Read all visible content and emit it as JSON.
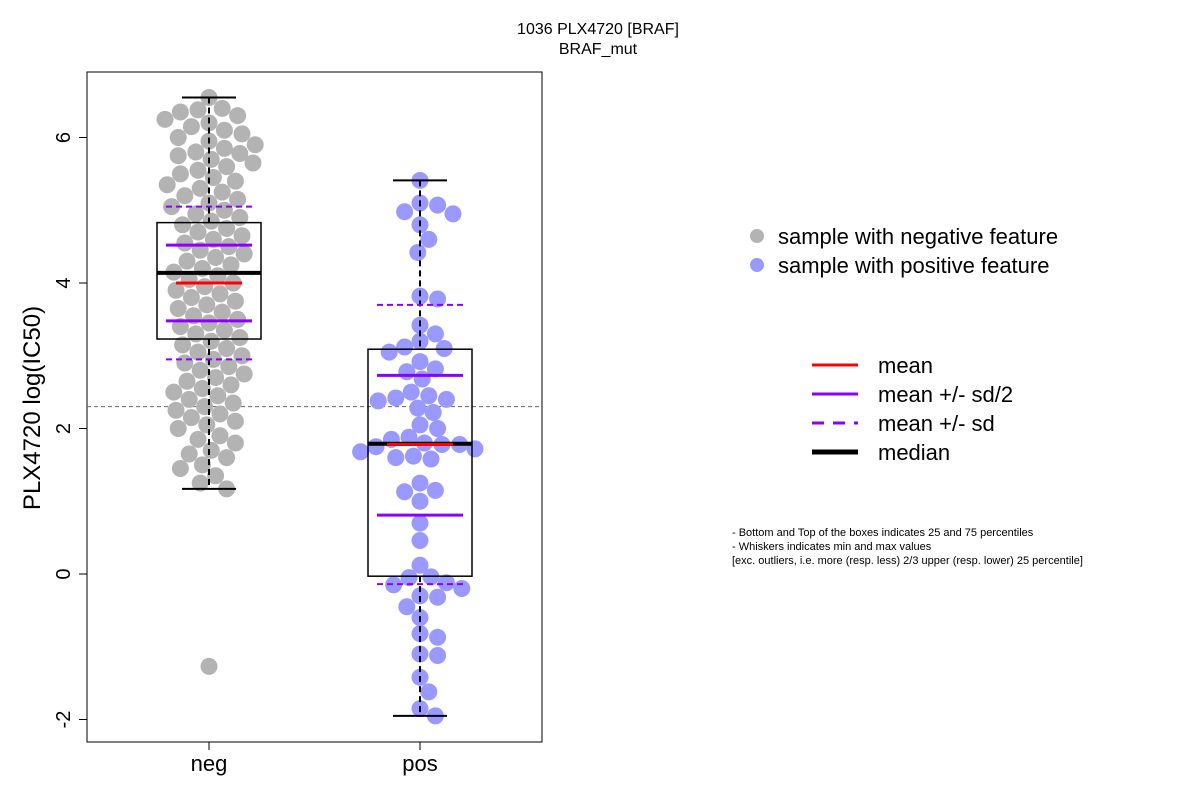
{
  "chart_data": {
    "type": "scatter",
    "title": "1036 PLX4720 [BRAF]",
    "subtitle": "BRAF_mut",
    "xlabel": "",
    "ylabel": "PLX4720 log(IC50)",
    "categories": [
      "neg",
      "pos"
    ],
    "yticks": [
      "-2",
      "0",
      "2",
      "4",
      "6"
    ],
    "ylim": [
      -2.3,
      6.9
    ],
    "threshold": 2.3,
    "box_stats": [
      {
        "group": "neg",
        "min": 1.17,
        "q1": 3.23,
        "median": 4.14,
        "q3": 4.83,
        "max": 6.55,
        "mean": 4.0,
        "mean_minus_half_sd": 3.48,
        "mean_plus_half_sd": 4.52,
        "mean_minus_sd": 2.95,
        "mean_plus_sd": 5.05
      },
      {
        "group": "pos",
        "min": -1.95,
        "q1": -0.03,
        "median": 1.79,
        "q3": 3.09,
        "max": 5.41,
        "mean": 1.78,
        "mean_minus_half_sd": 0.81,
        "mean_plus_half_sd": 2.73,
        "mean_minus_sd": -0.14,
        "mean_plus_sd": 3.7
      }
    ],
    "outliers": [
      {
        "group": "neg",
        "value": -1.27
      }
    ],
    "series": [
      {
        "name": "sample with negative feature",
        "group": "neg",
        "color": "#b3b3b3",
        "values": [
          6.55,
          6.4,
          6.38,
          6.35,
          6.3,
          6.25,
          6.2,
          6.15,
          6.1,
          6.05,
          6.0,
          5.95,
          5.9,
          5.85,
          5.8,
          5.78,
          5.75,
          5.7,
          5.65,
          5.6,
          5.55,
          5.5,
          5.45,
          5.4,
          5.35,
          5.3,
          5.25,
          5.2,
          5.15,
          5.1,
          5.05,
          5.0,
          4.95,
          4.9,
          4.85,
          4.8,
          4.75,
          4.7,
          4.65,
          4.6,
          4.55,
          4.5,
          4.45,
          4.4,
          4.35,
          4.3,
          4.25,
          4.2,
          4.15,
          4.1,
          4.05,
          4.0,
          3.95,
          3.9,
          3.85,
          3.8,
          3.75,
          3.7,
          3.65,
          3.6,
          3.55,
          3.5,
          3.45,
          3.4,
          3.35,
          3.3,
          3.25,
          3.2,
          3.15,
          3.1,
          3.05,
          3.0,
          2.95,
          2.9,
          2.85,
          2.8,
          2.75,
          2.7,
          2.65,
          2.6,
          2.55,
          2.5,
          2.45,
          2.4,
          2.35,
          2.3,
          2.25,
          2.2,
          2.15,
          2.1,
          2.05,
          2.0,
          1.9,
          1.85,
          1.8,
          1.7,
          1.65,
          1.6,
          1.5,
          1.45,
          1.35,
          1.25,
          1.17,
          -1.27
        ]
      },
      {
        "name": "sample with positive feature",
        "group": "pos",
        "color": "#9999ff",
        "values": [
          5.41,
          5.1,
          5.07,
          4.98,
          4.95,
          4.8,
          4.6,
          4.42,
          3.82,
          3.78,
          3.42,
          3.3,
          3.2,
          3.12,
          3.1,
          3.05,
          2.92,
          2.82,
          2.78,
          2.68,
          2.5,
          2.45,
          2.42,
          2.4,
          2.38,
          2.28,
          2.22,
          2.05,
          2.0,
          1.88,
          1.85,
          1.8,
          1.78,
          1.78,
          1.75,
          1.72,
          1.68,
          1.62,
          1.6,
          1.58,
          1.25,
          1.15,
          1.13,
          1.0,
          0.7,
          0.46,
          0.12,
          -0.04,
          -0.05,
          -0.12,
          -0.15,
          -0.2,
          -0.3,
          -0.32,
          -0.45,
          -0.6,
          -0.82,
          -0.87,
          -1.1,
          -1.12,
          -1.42,
          -1.62,
          -1.85,
          -1.95
        ]
      }
    ],
    "legend": {
      "placement": "right",
      "points": [
        {
          "label": "sample with negative feature",
          "color": "#b3b3b3"
        },
        {
          "label": "sample with positive feature",
          "color": "#9999ff"
        }
      ],
      "lines": [
        {
          "label": "mean",
          "color": "#ff0000",
          "style": "solid"
        },
        {
          "label": "mean +/- sd/2",
          "color": "#8b00ff",
          "style": "solid"
        },
        {
          "label": "mean +/- sd",
          "color": "#8b00ff",
          "style": "dashed"
        },
        {
          "label": "median",
          "color": "#000000",
          "style": "thick"
        }
      ]
    },
    "notes": [
      "- Bottom and Top of the boxes indicates 25 and 75 percentiles",
      "- Whiskers indicates min and max values",
      "[exc. outliers, i.e. more (resp. less) 2/3 upper (resp. lower) 25 percentile]"
    ]
  }
}
